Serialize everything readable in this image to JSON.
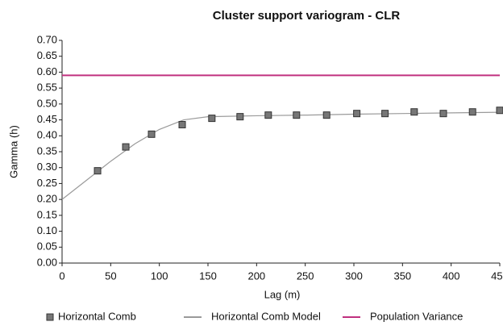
{
  "chart_data": {
    "type": "line",
    "title": "Cluster support variogram - CLR",
    "x_label": "Lag (m)",
    "y_label": "Gamma (h)",
    "xlim": [
      0,
      450
    ],
    "ylim": [
      0,
      0.7
    ],
    "xticks": [
      0,
      50,
      100,
      150,
      200,
      250,
      300,
      350,
      400,
      450
    ],
    "yticks": [
      {
        "value": 0,
        "label": "0.00"
      },
      0.05,
      {
        "value": 0.1,
        "label": "0.10"
      },
      0.15,
      {
        "value": 0.2,
        "label": "0.20"
      },
      0.25,
      {
        "value": 0.3,
        "label": "0.30"
      },
      0.35,
      {
        "value": 0.4,
        "label": "0.40"
      },
      0.45,
      {
        "value": 0.5,
        "label": "0.50"
      },
      0.55,
      {
        "value": 0.6,
        "label": "0.60"
      },
      0.65,
      {
        "value": 0.7,
        "label": "0.70"
      }
    ],
    "grid": false,
    "legend": "bottom",
    "series": [
      {
        "name": "Horizontal Comb",
        "style": "marker",
        "color": "#777777",
        "x": [
          36.5,
          65.5,
          92,
          123.5,
          154,
          183,
          212,
          241,
          272,
          303,
          332,
          362,
          392,
          422,
          450
        ],
        "values": [
          0.29,
          0.365,
          0.405,
          0.435,
          0.455,
          0.46,
          0.465,
          0.465,
          0.465,
          0.47,
          0.47,
          0.475,
          0.47,
          0.475,
          0.48
        ]
      },
      {
        "name": "Horizontal Comb Model",
        "style": "line",
        "color": "#9a9a9a",
        "x": [
          0,
          25,
          50,
          75,
          100,
          125,
          150,
          200,
          250,
          300,
          350,
          400,
          450
        ],
        "values": [
          0.2,
          0.26,
          0.32,
          0.375,
          0.42,
          0.45,
          0.46,
          0.463,
          0.465,
          0.468,
          0.47,
          0.472,
          0.474
        ]
      },
      {
        "name": "Population Variance",
        "style": "line",
        "color": "#c0307f",
        "x": [
          0,
          450
        ],
        "values": [
          0.59,
          0.59
        ]
      }
    ]
  }
}
